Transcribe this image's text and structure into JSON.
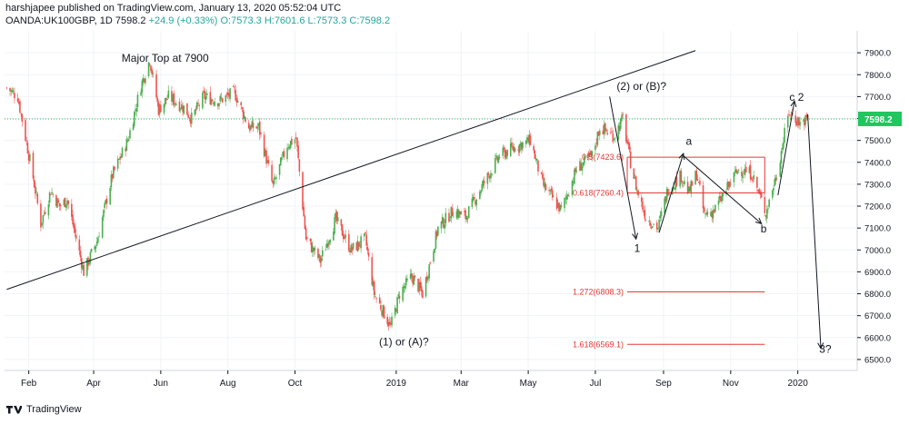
{
  "header": {
    "publisher": "harshjapee published on TradingView.com, January 13, 2020 05:52:04 UTC",
    "symbol_line": "OANDA:UK100GBP, 1D",
    "last": "7598.2",
    "change": "+24.9 (+0.33%)",
    "open": "O:7573.3",
    "high": "H:7601.6",
    "low": "L:7573.3",
    "close": "C:7598.2"
  },
  "footer": {
    "brand": "TradingView"
  },
  "colors": {
    "up": "#4caf50",
    "down": "#ef5350",
    "price_line": "#22c55e",
    "fib": "#e53935",
    "annot": "#131722"
  },
  "chart_data": {
    "type": "candlestick",
    "title": "",
    "ylim": [
      6450,
      8000
    ],
    "y_ticks": [
      6500,
      6600,
      6700,
      6800,
      6900,
      7000,
      7100,
      7200,
      7300,
      7400,
      7500,
      7600,
      7700,
      7800,
      7900
    ],
    "y_tick_labels": [
      "6500.0",
      "6600.0",
      "6700.0",
      "6800.0",
      "6900.0",
      "7000.0",
      "7100.0",
      "7200.0",
      "7300.0",
      "7400.0",
      "7500.0",
      "7600.0",
      "7700.0",
      "7800.0",
      "7900.0"
    ],
    "x_ticks": [
      {
        "label": "Feb",
        "date": "2018-02-01"
      },
      {
        "label": "Apr",
        "date": "2018-04-01"
      },
      {
        "label": "Jun",
        "date": "2018-06-01"
      },
      {
        "label": "Aug",
        "date": "2018-08-01"
      },
      {
        "label": "Oct",
        "date": "2018-10-01"
      },
      {
        "label": "2019",
        "date": "2019-01-01"
      },
      {
        "label": "Mar",
        "date": "2019-03-01"
      },
      {
        "label": "May",
        "date": "2019-05-01"
      },
      {
        "label": "Jul",
        "date": "2019-07-01"
      },
      {
        "label": "Sep",
        "date": "2019-09-01"
      },
      {
        "label": "Nov",
        "date": "2019-11-01"
      },
      {
        "label": "2020",
        "date": "2020-01-01"
      }
    ],
    "last_price": {
      "value": 7598.2,
      "label": "7598.2"
    },
    "price_path": [
      [
        "2018-01-12",
        7740
      ],
      [
        "2018-01-22",
        7700
      ],
      [
        "2018-02-05",
        7330
      ],
      [
        "2018-02-12",
        7120
      ],
      [
        "2018-02-21",
        7270
      ],
      [
        "2018-03-01",
        7200
      ],
      [
        "2018-03-08",
        7230
      ],
      [
        "2018-03-23",
        6900
      ],
      [
        "2018-04-04",
        7040
      ],
      [
        "2018-04-18",
        7340
      ],
      [
        "2018-05-02",
        7500
      ],
      [
        "2018-05-14",
        7750
      ],
      [
        "2018-05-22",
        7870
      ],
      [
        "2018-05-30",
        7640
      ],
      [
        "2018-06-08",
        7700
      ],
      [
        "2018-06-22",
        7650
      ],
      [
        "2018-06-29",
        7600
      ],
      [
        "2018-07-10",
        7700
      ],
      [
        "2018-07-24",
        7680
      ],
      [
        "2018-08-07",
        7720
      ],
      [
        "2018-08-20",
        7560
      ],
      [
        "2018-08-29",
        7560
      ],
      [
        "2018-09-11",
        7290
      ],
      [
        "2018-09-24",
        7480
      ],
      [
        "2018-10-02",
        7510
      ],
      [
        "2018-10-11",
        7050
      ],
      [
        "2018-10-24",
        6950
      ],
      [
        "2018-11-07",
        7140
      ],
      [
        "2018-11-21",
        7000
      ],
      [
        "2018-12-04",
        7050
      ],
      [
        "2018-12-12",
        6800
      ],
      [
        "2018-12-27",
        6650
      ],
      [
        "2019-01-04",
        6800
      ],
      [
        "2019-01-15",
        6880
      ],
      [
        "2019-01-25",
        6800
      ],
      [
        "2019-02-08",
        7100
      ],
      [
        "2019-02-22",
        7180
      ],
      [
        "2019-03-05",
        7150
      ],
      [
        "2019-03-20",
        7290
      ],
      [
        "2019-04-05",
        7430
      ],
      [
        "2019-04-19",
        7470
      ],
      [
        "2019-05-03",
        7500
      ],
      [
        "2019-05-14",
        7300
      ],
      [
        "2019-05-31",
        7180
      ],
      [
        "2019-06-14",
        7370
      ],
      [
        "2019-06-28",
        7430
      ],
      [
        "2019-07-05",
        7560
      ],
      [
        "2019-07-18",
        7520
      ],
      [
        "2019-07-26",
        7600
      ],
      [
        "2019-08-02",
        7400
      ],
      [
        "2019-08-08",
        7270
      ],
      [
        "2019-08-16",
        7150
      ],
      [
        "2019-08-27",
        7100
      ],
      [
        "2019-09-05",
        7280
      ],
      [
        "2019-09-17",
        7340
      ],
      [
        "2019-09-24",
        7260
      ],
      [
        "2019-10-01",
        7350
      ],
      [
        "2019-10-08",
        7160
      ],
      [
        "2019-10-17",
        7180
      ],
      [
        "2019-10-31",
        7300
      ],
      [
        "2019-11-08",
        7370
      ],
      [
        "2019-11-20",
        7350
      ],
      [
        "2019-12-03",
        7170
      ],
      [
        "2019-12-13",
        7350
      ],
      [
        "2019-12-24",
        7630
      ],
      [
        "2020-01-03",
        7580
      ],
      [
        "2020-01-10",
        7598
      ]
    ],
    "fib_levels": [
      {
        "label": "0.5(7423.6)",
        "value": 7423.6
      },
      {
        "label": "0.618(7260.4)",
        "value": 7260.4
      },
      {
        "label": "1.272(6808.3)",
        "value": 6808.3
      },
      {
        "label": "1.618(6569.1)",
        "value": 6569.1
      }
    ],
    "annotations": [
      {
        "text": "Major Top at 7900",
        "date": "2018-06-05",
        "y": 7860
      },
      {
        "text": "(2) or (B)?",
        "date": "2019-08-12",
        "y": 7730
      },
      {
        "text": "(1) or (A)?",
        "date": "2019-01-08",
        "y": 6565
      },
      {
        "text": "1",
        "date": "2019-08-08",
        "y": 6990
      },
      {
        "text": "a",
        "date": "2019-09-24",
        "y": 7480
      },
      {
        "text": "b",
        "date": "2019-12-01",
        "y": 7080
      },
      {
        "text": "c 2",
        "date": "2019-12-31",
        "y": 7680
      },
      {
        "text": "3?",
        "date": "2020-01-26",
        "y": 6530
      }
    ],
    "trendline": [
      [
        "2018-01-12",
        6820
      ],
      [
        "2019-09-30",
        7910
      ]
    ],
    "wave_arrows": [
      [
        [
          "2019-07-14",
          7700
        ],
        [
          "2019-08-07",
          7050
        ]
      ],
      [
        [
          "2019-08-28",
          7080
        ],
        [
          "2019-09-19",
          7440
        ]
      ],
      [
        [
          "2019-09-19",
          7430
        ],
        [
          "2019-11-29",
          7120
        ]
      ],
      [
        [
          "2019-12-14",
          7250
        ],
        [
          "2019-12-29",
          7680
        ]
      ],
      [
        [
          "2020-01-10",
          7620
        ],
        [
          "2020-01-22",
          6550
        ]
      ]
    ]
  }
}
